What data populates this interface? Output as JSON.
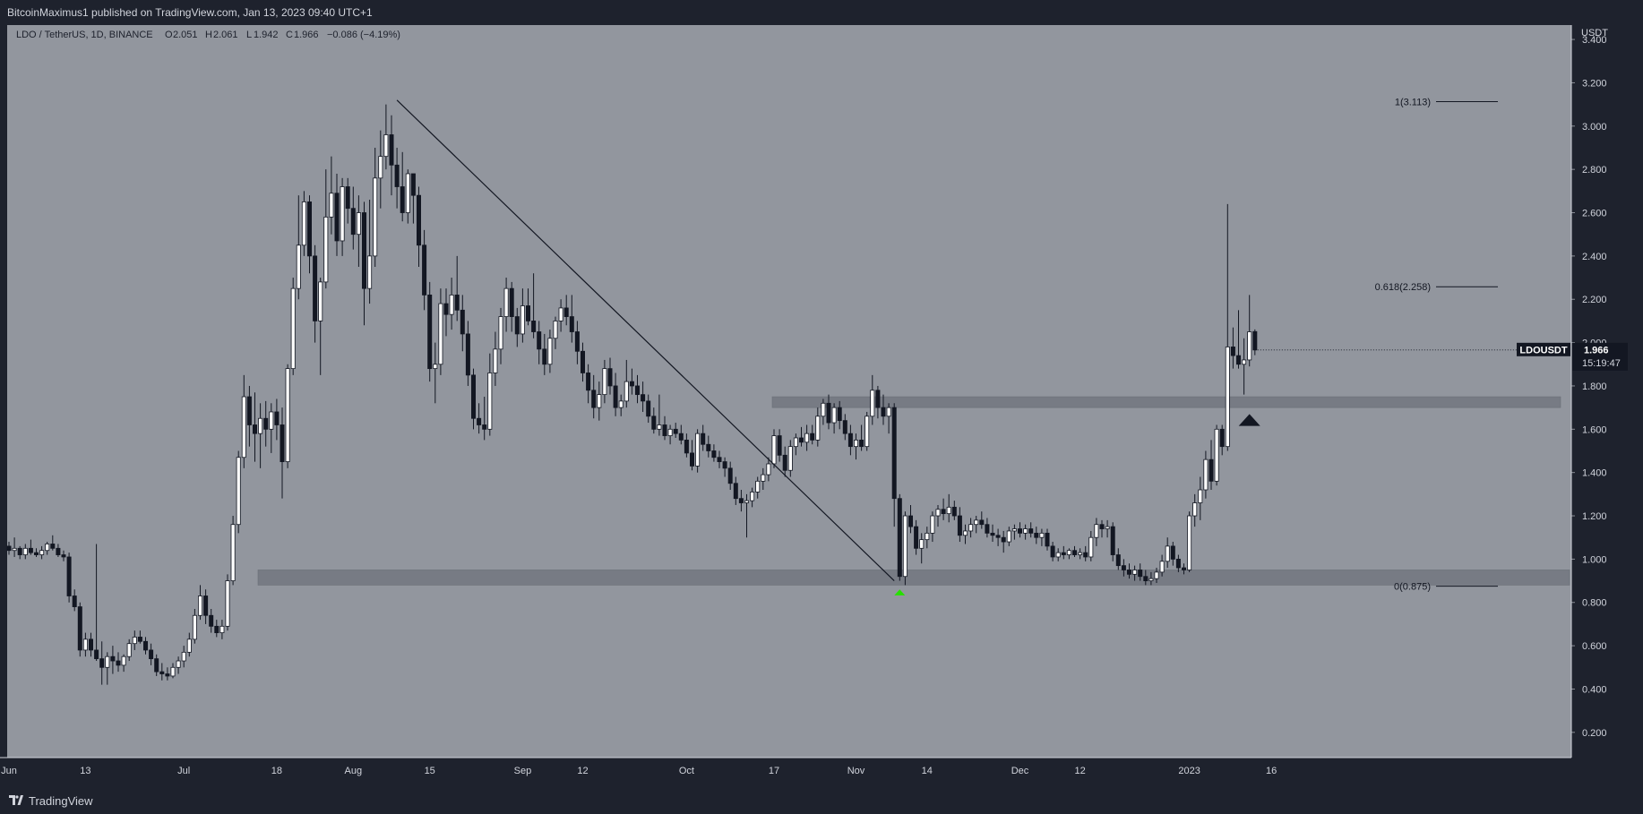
{
  "header": {
    "publisher_text": "BitcoinMaximus1 published on TradingView.com, Jan 13, 2023 09:40 UTC+1"
  },
  "footer": {
    "brand_label": "TradingView"
  },
  "colors": {
    "plot_bg": "#92969e",
    "axis_bg": "#1e222d",
    "up_body": "#ffffff",
    "down_body": "#131722",
    "wick": "#131722",
    "zone": "#6f737c",
    "trendline": "#131722",
    "green_arrow": "#26e000",
    "tag_bg": "#131722"
  },
  "chart_data": {
    "type": "candlestick",
    "symbol": "LDO / TetherUS, 1D, BINANCE",
    "legend": {
      "symbol": "LDO / TetherUS, 1D, BINANCE",
      "o_label": "O",
      "o_value": "2.051",
      "h_label": "H",
      "h_value": "2.061",
      "l_label": "L",
      "l_value": "1.942",
      "c_label": "C",
      "c_value": "1.966",
      "change": "−0.086 (−4.19%)"
    },
    "currency_label": "USDT",
    "y_axis": {
      "min": 0.1,
      "max": 3.45,
      "ticks": [
        "3.400",
        "3.200",
        "3.000",
        "2.800",
        "2.600",
        "2.400",
        "2.200",
        "2.000",
        "1.800",
        "1.600",
        "1.400",
        "1.200",
        "1.000",
        "0.800",
        "0.600",
        "0.400",
        "0.200"
      ]
    },
    "x_axis": {
      "start_date": "2022-05-30",
      "ticks": [
        {
          "date": "2022-05-30",
          "label": "Jun"
        },
        {
          "date": "2022-06-13",
          "label": "13"
        },
        {
          "date": "2022-07-01",
          "label": "Jul"
        },
        {
          "date": "2022-07-18",
          "label": "18"
        },
        {
          "date": "2022-08-01",
          "label": "Aug"
        },
        {
          "date": "2022-08-15",
          "label": "15"
        },
        {
          "date": "2022-09-01",
          "label": "Sep"
        },
        {
          "date": "2022-09-12",
          "label": "12"
        },
        {
          "date": "2022-10-01",
          "label": "Oct"
        },
        {
          "date": "2022-10-17",
          "label": "17"
        },
        {
          "date": "2022-11-01",
          "label": "Nov"
        },
        {
          "date": "2022-11-14",
          "label": "14"
        },
        {
          "date": "2022-12-01",
          "label": "Dec"
        },
        {
          "date": "2022-12-12",
          "label": "12"
        },
        {
          "date": "2023-01-01",
          "label": "2023"
        },
        {
          "date": "2023-01-16",
          "label": "16"
        }
      ]
    },
    "candles": [
      [
        1.06,
        1.08,
        1.02,
        1.04
      ],
      [
        1.04,
        1.1,
        1.01,
        1.05
      ],
      [
        1.05,
        1.06,
        1.0,
        1.02
      ],
      [
        1.02,
        1.07,
        1.0,
        1.05
      ],
      [
        1.05,
        1.09,
        1.02,
        1.03
      ],
      [
        1.03,
        1.05,
        1.01,
        1.02
      ],
      [
        1.02,
        1.06,
        1.0,
        1.04
      ],
      [
        1.04,
        1.08,
        1.02,
        1.07
      ],
      [
        1.07,
        1.11,
        1.04,
        1.05
      ],
      [
        1.05,
        1.07,
        1.01,
        1.02
      ],
      [
        1.02,
        1.04,
        0.99,
        1.01
      ],
      [
        1.01,
        1.03,
        0.8,
        0.83
      ],
      [
        0.83,
        0.86,
        0.76,
        0.78
      ],
      [
        0.78,
        0.8,
        0.55,
        0.58
      ],
      [
        0.58,
        0.66,
        0.55,
        0.63
      ],
      [
        0.63,
        0.66,
        0.55,
        0.58
      ],
      [
        0.58,
        1.07,
        0.53,
        0.54
      ],
      [
        0.54,
        0.62,
        0.42,
        0.5
      ],
      [
        0.5,
        0.57,
        0.42,
        0.55
      ],
      [
        0.55,
        0.6,
        0.47,
        0.53
      ],
      [
        0.53,
        0.57,
        0.48,
        0.51
      ],
      [
        0.51,
        0.56,
        0.48,
        0.55
      ],
      [
        0.55,
        0.63,
        0.53,
        0.61
      ],
      [
        0.61,
        0.67,
        0.58,
        0.64
      ],
      [
        0.64,
        0.67,
        0.61,
        0.62
      ],
      [
        0.62,
        0.64,
        0.56,
        0.58
      ],
      [
        0.58,
        0.61,
        0.51,
        0.54
      ],
      [
        0.54,
        0.56,
        0.46,
        0.48
      ],
      [
        0.48,
        0.52,
        0.44,
        0.47
      ],
      [
        0.47,
        0.5,
        0.44,
        0.46
      ],
      [
        0.46,
        0.52,
        0.45,
        0.5
      ],
      [
        0.5,
        0.55,
        0.47,
        0.53
      ],
      [
        0.53,
        0.6,
        0.5,
        0.57
      ],
      [
        0.57,
        0.66,
        0.55,
        0.63
      ],
      [
        0.63,
        0.77,
        0.61,
        0.74
      ],
      [
        0.74,
        0.88,
        0.72,
        0.83
      ],
      [
        0.83,
        0.86,
        0.7,
        0.74
      ],
      [
        0.74,
        0.77,
        0.66,
        0.69
      ],
      [
        0.69,
        0.72,
        0.64,
        0.66
      ],
      [
        0.66,
        0.72,
        0.63,
        0.69
      ],
      [
        0.69,
        0.93,
        0.67,
        0.9
      ],
      [
        0.9,
        1.2,
        0.88,
        1.16
      ],
      [
        1.16,
        1.5,
        1.12,
        1.47
      ],
      [
        1.47,
        1.85,
        1.42,
        1.75
      ],
      [
        1.75,
        1.8,
        1.52,
        1.62
      ],
      [
        1.62,
        1.77,
        1.45,
        1.58
      ],
      [
        1.58,
        1.72,
        1.42,
        1.65
      ],
      [
        1.65,
        1.73,
        1.52,
        1.6
      ],
      [
        1.6,
        1.72,
        1.49,
        1.68
      ],
      [
        1.68,
        1.74,
        1.55,
        1.62
      ],
      [
        1.62,
        1.7,
        1.28,
        1.45
      ],
      [
        1.45,
        1.9,
        1.42,
        1.88
      ],
      [
        1.88,
        2.3,
        1.85,
        2.25
      ],
      [
        2.25,
        2.68,
        2.2,
        2.45
      ],
      [
        2.45,
        2.7,
        2.4,
        2.65
      ],
      [
        2.65,
        2.68,
        2.32,
        2.4
      ],
      [
        2.4,
        2.45,
        2.0,
        2.1
      ],
      [
        2.1,
        2.3,
        1.85,
        2.28
      ],
      [
        2.28,
        2.8,
        2.25,
        2.58
      ],
      [
        2.58,
        2.86,
        2.5,
        2.69
      ],
      [
        2.69,
        2.78,
        2.4,
        2.47
      ],
      [
        2.47,
        2.76,
        2.4,
        2.72
      ],
      [
        2.72,
        2.76,
        2.55,
        2.62
      ],
      [
        2.62,
        2.72,
        2.43,
        2.5
      ],
      [
        2.5,
        2.68,
        2.35,
        2.6
      ],
      [
        2.6,
        2.65,
        2.08,
        2.25
      ],
      [
        2.25,
        2.66,
        2.18,
        2.4
      ],
      [
        2.4,
        2.9,
        2.35,
        2.76
      ],
      [
        2.76,
        2.98,
        2.62,
        2.86
      ],
      [
        2.86,
        3.1,
        2.8,
        2.96
      ],
      [
        2.96,
        3.05,
        2.68,
        2.82
      ],
      [
        2.82,
        2.9,
        2.62,
        2.72
      ],
      [
        2.72,
        2.88,
        2.56,
        2.6
      ],
      [
        2.6,
        2.8,
        2.55,
        2.78
      ],
      [
        2.78,
        2.78,
        2.55,
        2.68
      ],
      [
        2.68,
        2.72,
        2.35,
        2.45
      ],
      [
        2.45,
        2.52,
        2.15,
        2.22
      ],
      [
        2.22,
        2.28,
        1.82,
        1.88
      ],
      [
        1.88,
        2.0,
        1.72,
        1.9
      ],
      [
        1.9,
        2.25,
        1.85,
        2.18
      ],
      [
        2.18,
        2.25,
        2.03,
        2.13
      ],
      [
        2.13,
        2.3,
        2.06,
        2.22
      ],
      [
        2.22,
        2.4,
        2.1,
        2.15
      ],
      [
        2.15,
        2.22,
        1.96,
        2.04
      ],
      [
        2.04,
        2.1,
        1.8,
        1.85
      ],
      [
        1.85,
        1.88,
        1.6,
        1.65
      ],
      [
        1.65,
        1.72,
        1.58,
        1.62
      ],
      [
        1.62,
        1.75,
        1.55,
        1.6
      ],
      [
        1.6,
        1.95,
        1.57,
        1.86
      ],
      [
        1.86,
        2.05,
        1.8,
        1.97
      ],
      [
        1.97,
        2.16,
        1.9,
        2.12
      ],
      [
        2.12,
        2.3,
        2.05,
        2.25
      ],
      [
        2.25,
        2.28,
        2.05,
        2.12
      ],
      [
        2.12,
        2.16,
        1.98,
        2.04
      ],
      [
        2.04,
        2.25,
        2.0,
        2.17
      ],
      [
        2.17,
        2.25,
        2.08,
        2.1
      ],
      [
        2.1,
        2.32,
        2.02,
        2.05
      ],
      [
        2.05,
        2.1,
        1.9,
        1.97
      ],
      [
        1.97,
        2.04,
        1.85,
        1.9
      ],
      [
        1.9,
        2.06,
        1.86,
        2.02
      ],
      [
        2.02,
        2.12,
        1.97,
        2.1
      ],
      [
        2.1,
        2.2,
        2.05,
        2.16
      ],
      [
        2.16,
        2.22,
        2.08,
        2.12
      ],
      [
        2.12,
        2.22,
        2.0,
        2.05
      ],
      [
        2.05,
        2.1,
        1.9,
        1.96
      ],
      [
        1.96,
        2.0,
        1.82,
        1.86
      ],
      [
        1.86,
        1.9,
        1.72,
        1.78
      ],
      [
        1.78,
        1.85,
        1.65,
        1.7
      ],
      [
        1.7,
        1.82,
        1.64,
        1.76
      ],
      [
        1.76,
        1.92,
        1.72,
        1.88
      ],
      [
        1.88,
        1.93,
        1.76,
        1.8
      ],
      [
        1.8,
        1.86,
        1.66,
        1.7
      ],
      [
        1.7,
        1.76,
        1.66,
        1.73
      ],
      [
        1.73,
        1.92,
        1.7,
        1.82
      ],
      [
        1.82,
        1.88,
        1.76,
        1.8
      ],
      [
        1.8,
        1.85,
        1.72,
        1.76
      ],
      [
        1.76,
        1.82,
        1.68,
        1.73
      ],
      [
        1.73,
        1.76,
        1.63,
        1.66
      ],
      [
        1.66,
        1.7,
        1.58,
        1.6
      ],
      [
        1.6,
        1.76,
        1.57,
        1.62
      ],
      [
        1.62,
        1.66,
        1.55,
        1.57
      ],
      [
        1.57,
        1.62,
        1.53,
        1.6
      ],
      [
        1.6,
        1.63,
        1.56,
        1.58
      ],
      [
        1.58,
        1.62,
        1.53,
        1.55
      ],
      [
        1.55,
        1.58,
        1.47,
        1.49
      ],
      [
        1.49,
        1.55,
        1.41,
        1.43
      ],
      [
        1.43,
        1.6,
        1.4,
        1.58
      ],
      [
        1.58,
        1.62,
        1.5,
        1.53
      ],
      [
        1.53,
        1.57,
        1.47,
        1.5
      ],
      [
        1.5,
        1.53,
        1.45,
        1.47
      ],
      [
        1.47,
        1.5,
        1.42,
        1.45
      ],
      [
        1.45,
        1.47,
        1.38,
        1.42
      ],
      [
        1.42,
        1.45,
        1.32,
        1.35
      ],
      [
        1.35,
        1.38,
        1.25,
        1.28
      ],
      [
        1.28,
        1.32,
        1.22,
        1.26
      ],
      [
        1.26,
        1.3,
        1.1,
        1.27
      ],
      [
        1.27,
        1.33,
        1.24,
        1.31
      ],
      [
        1.31,
        1.38,
        1.28,
        1.36
      ],
      [
        1.36,
        1.42,
        1.32,
        1.39
      ],
      [
        1.39,
        1.47,
        1.36,
        1.44
      ],
      [
        1.44,
        1.6,
        1.42,
        1.57
      ],
      [
        1.57,
        1.6,
        1.45,
        1.48
      ],
      [
        1.48,
        1.52,
        1.38,
        1.41
      ],
      [
        1.41,
        1.55,
        1.38,
        1.52
      ],
      [
        1.52,
        1.58,
        1.48,
        1.56
      ],
      [
        1.56,
        1.61,
        1.52,
        1.54
      ],
      [
        1.54,
        1.62,
        1.5,
        1.58
      ],
      [
        1.58,
        1.62,
        1.53,
        1.55
      ],
      [
        1.55,
        1.7,
        1.52,
        1.66
      ],
      [
        1.66,
        1.74,
        1.62,
        1.72
      ],
      [
        1.72,
        1.76,
        1.6,
        1.63
      ],
      [
        1.63,
        1.72,
        1.58,
        1.7
      ],
      [
        1.7,
        1.73,
        1.6,
        1.64
      ],
      [
        1.64,
        1.67,
        1.55,
        1.58
      ],
      [
        1.58,
        1.62,
        1.48,
        1.52
      ],
      [
        1.52,
        1.58,
        1.46,
        1.55
      ],
      [
        1.55,
        1.62,
        1.5,
        1.52
      ],
      [
        1.52,
        1.68,
        1.5,
        1.66
      ],
      [
        1.66,
        1.85,
        1.62,
        1.78
      ],
      [
        1.78,
        1.8,
        1.65,
        1.7
      ],
      [
        1.7,
        1.76,
        1.62,
        1.66
      ],
      [
        1.66,
        1.72,
        1.58,
        1.7
      ],
      [
        1.7,
        1.72,
        1.15,
        1.28
      ],
      [
        1.28,
        1.3,
        0.9,
        0.92
      ],
      [
        0.92,
        1.22,
        0.88,
        1.2
      ],
      [
        1.2,
        1.25,
        1.12,
        1.15
      ],
      [
        1.15,
        1.18,
        1.02,
        1.05
      ],
      [
        1.05,
        1.12,
        0.98,
        1.09
      ],
      [
        1.09,
        1.15,
        1.05,
        1.12
      ],
      [
        1.12,
        1.22,
        1.08,
        1.2
      ],
      [
        1.2,
        1.25,
        1.15,
        1.23
      ],
      [
        1.23,
        1.28,
        1.18,
        1.21
      ],
      [
        1.21,
        1.3,
        1.17,
        1.24
      ],
      [
        1.24,
        1.27,
        1.18,
        1.2
      ],
      [
        1.2,
        1.24,
        1.08,
        1.11
      ],
      [
        1.11,
        1.16,
        1.07,
        1.13
      ],
      [
        1.13,
        1.19,
        1.1,
        1.16
      ],
      [
        1.16,
        1.2,
        1.12,
        1.18
      ],
      [
        1.18,
        1.22,
        1.14,
        1.16
      ],
      [
        1.16,
        1.19,
        1.1,
        1.12
      ],
      [
        1.12,
        1.16,
        1.08,
        1.11
      ],
      [
        1.11,
        1.14,
        1.06,
        1.1
      ],
      [
        1.1,
        1.13,
        1.03,
        1.08
      ],
      [
        1.08,
        1.15,
        1.06,
        1.13
      ],
      [
        1.13,
        1.16,
        1.09,
        1.14
      ],
      [
        1.14,
        1.17,
        1.1,
        1.12
      ],
      [
        1.12,
        1.16,
        1.09,
        1.14
      ],
      [
        1.14,
        1.17,
        1.1,
        1.12
      ],
      [
        1.12,
        1.15,
        1.07,
        1.1
      ],
      [
        1.1,
        1.14,
        1.06,
        1.12
      ],
      [
        1.12,
        1.14,
        1.04,
        1.06
      ],
      [
        1.06,
        1.08,
        0.99,
        1.01
      ],
      [
        1.01,
        1.05,
        0.99,
        1.03
      ],
      [
        1.03,
        1.06,
        1.0,
        1.02
      ],
      [
        1.02,
        1.05,
        1.0,
        1.04
      ],
      [
        1.04,
        1.06,
        1.01,
        1.02
      ],
      [
        1.02,
        1.05,
        1.0,
        1.03
      ],
      [
        1.03,
        1.06,
        0.99,
        1.01
      ],
      [
        1.01,
        1.13,
        0.99,
        1.1
      ],
      [
        1.1,
        1.19,
        1.06,
        1.16
      ],
      [
        1.16,
        1.18,
        1.1,
        1.14
      ],
      [
        1.14,
        1.18,
        1.1,
        1.15
      ],
      [
        1.15,
        1.17,
        0.99,
        1.02
      ],
      [
        1.02,
        1.05,
        0.95,
        0.97
      ],
      [
        0.97,
        1.0,
        0.92,
        0.95
      ],
      [
        0.95,
        0.98,
        0.91,
        0.93
      ],
      [
        0.93,
        0.97,
        0.9,
        0.95
      ],
      [
        0.95,
        0.98,
        0.9,
        0.92
      ],
      [
        0.92,
        0.95,
        0.88,
        0.9
      ],
      [
        0.9,
        0.94,
        0.88,
        0.91
      ],
      [
        0.91,
        0.96,
        0.89,
        0.94
      ],
      [
        0.94,
        1.02,
        0.92,
        0.99
      ],
      [
        0.99,
        1.1,
        0.96,
        1.06
      ],
      [
        1.06,
        1.08,
        0.97,
        1.0
      ],
      [
        1.0,
        1.02,
        0.94,
        0.96
      ],
      [
        0.96,
        0.98,
        0.93,
        0.95
      ],
      [
        0.95,
        1.22,
        0.94,
        1.2
      ],
      [
        1.2,
        1.3,
        1.15,
        1.26
      ],
      [
        1.26,
        1.38,
        1.18,
        1.32
      ],
      [
        1.32,
        1.5,
        1.28,
        1.46
      ],
      [
        1.46,
        1.55,
        1.32,
        1.36
      ],
      [
        1.36,
        1.62,
        1.34,
        1.6
      ],
      [
        1.6,
        1.62,
        1.48,
        1.52
      ],
      [
        1.52,
        2.64,
        1.5,
        1.98
      ],
      [
        1.98,
        2.07,
        1.88,
        1.94
      ],
      [
        1.94,
        2.15,
        1.88,
        1.9
      ],
      [
        1.9,
        2.02,
        1.76,
        1.92
      ],
      [
        1.92,
        2.22,
        1.89,
        2.05
      ],
      [
        2.051,
        2.061,
        1.942,
        1.966
      ]
    ],
    "horizontal_zones": [
      {
        "low": 0.88,
        "high": 0.95
      },
      {
        "low": 1.7,
        "high": 1.75
      }
    ],
    "trendline": {
      "from": {
        "date": "2022-08-09",
        "price": 3.12
      },
      "to": {
        "date": "2022-11-08",
        "price": 0.9
      }
    },
    "fibonacci": [
      {
        "label": "1(3.113)",
        "price": 3.113
      },
      {
        "label": "0.618(2.258)",
        "price": 2.258
      },
      {
        "label": "0(0.875)",
        "price": 0.875
      }
    ],
    "markers": [
      {
        "type": "arrow-up",
        "color": "green",
        "date": "2022-11-09",
        "price": 0.855
      },
      {
        "type": "arrow-up",
        "color": "black",
        "date": "2023-01-12",
        "price": 1.66
      }
    ],
    "last_price": {
      "symbol": "LDOUSDT",
      "price_text": "1.966",
      "countdown": "15:19:47",
      "price": 1.966
    }
  }
}
